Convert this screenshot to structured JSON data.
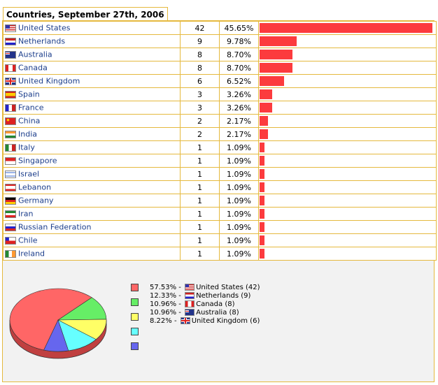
{
  "title": "Countries, September 27th, 2006",
  "chart_data": [
    {
      "type": "bar",
      "categories": [
        "United States",
        "Netherlands",
        "Australia",
        "Canada",
        "United Kingdom",
        "Spain",
        "France",
        "China",
        "India",
        "Italy",
        "Singapore",
        "Israel",
        "Lebanon",
        "Germany",
        "Iran",
        "Russian Federation",
        "Chile",
        "Ireland"
      ],
      "values": [
        42,
        9,
        8,
        8,
        6,
        3,
        3,
        2,
        2,
        1,
        1,
        1,
        1,
        1,
        1,
        1,
        1,
        1
      ],
      "percent_labels": [
        "45.65%",
        "9.78%",
        "8.70%",
        "8.70%",
        "6.52%",
        "3.26%",
        "3.26%",
        "2.17%",
        "2.17%",
        "1.09%",
        "1.09%",
        "1.09%",
        "1.09%",
        "1.09%",
        "1.09%",
        "1.09%",
        "1.09%",
        "1.09%"
      ],
      "flag_icons": [
        "us-flag-icon",
        "nl-flag-icon",
        "au-flag-icon",
        "ca-flag-icon",
        "gb-flag-icon",
        "es-flag-icon",
        "fr-flag-icon",
        "cn-flag-icon",
        "in-flag-icon",
        "it-flag-icon",
        "sg-flag-icon",
        "il-flag-icon",
        "lb-flag-icon",
        "de-flag-icon",
        "ir-flag-icon",
        "ru-flag-icon",
        "cl-flag-icon",
        "ie-flag-icon"
      ],
      "bar_color": "#fc3b3e",
      "xlim": [
        0,
        42
      ]
    },
    {
      "type": "pie",
      "slices": [
        {
          "label": "United States (42)",
          "value": 57.53,
          "percent_label": "57.53%",
          "color": "#ff6666",
          "flag": "us-flag-icon"
        },
        {
          "label": "Netherlands (9)",
          "value": 12.33,
          "percent_label": "12.33%",
          "color": "#66ee66",
          "flag": "nl-flag-icon"
        },
        {
          "label": "Canada (8)",
          "value": 10.96,
          "percent_label": "10.96%",
          "color": "#ffff66",
          "flag": "ca-flag-icon"
        },
        {
          "label": "Australia (8)",
          "value": 10.96,
          "percent_label": "10.96%",
          "color": "#66ffff",
          "flag": "au-flag-icon"
        },
        {
          "label": "United Kingdom (6)",
          "value": 8.22,
          "percent_label": "8.22%",
          "color": "#6666ee",
          "flag": "gb-flag-icon"
        }
      ]
    }
  ]
}
